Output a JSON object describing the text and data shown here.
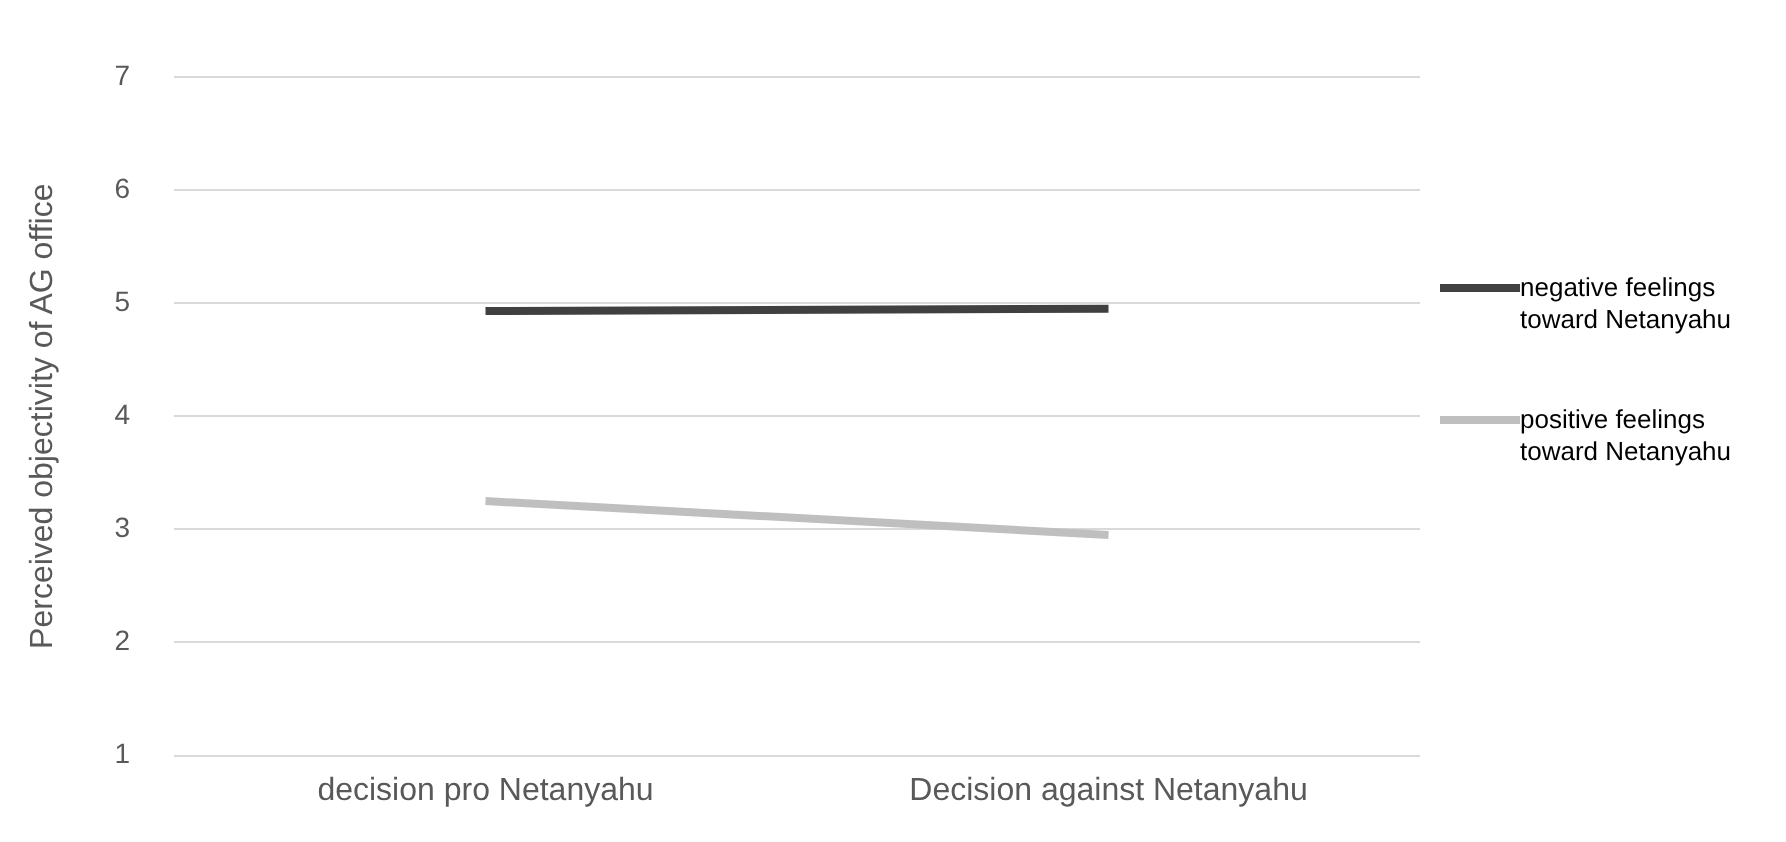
{
  "chart_data": {
    "type": "line",
    "ylabel": "Perceived objectivity of AG office",
    "categories": [
      "decision pro Netanyahu",
      "Decision against Netanyahu"
    ],
    "series": [
      {
        "name": "negative feelings toward Netanyahu",
        "color": "#404040",
        "values": [
          4.93,
          4.95
        ]
      },
      {
        "name": "positive feelings toward Netanyahu",
        "color": "#bfbfbf",
        "values": [
          3.25,
          2.95
        ]
      }
    ],
    "ylim": [
      1,
      7
    ],
    "yticks": [
      1,
      2,
      3,
      4,
      5,
      6,
      7
    ],
    "grid": "y",
    "legend": "right",
    "marker": "none",
    "line_style": "solid"
  }
}
